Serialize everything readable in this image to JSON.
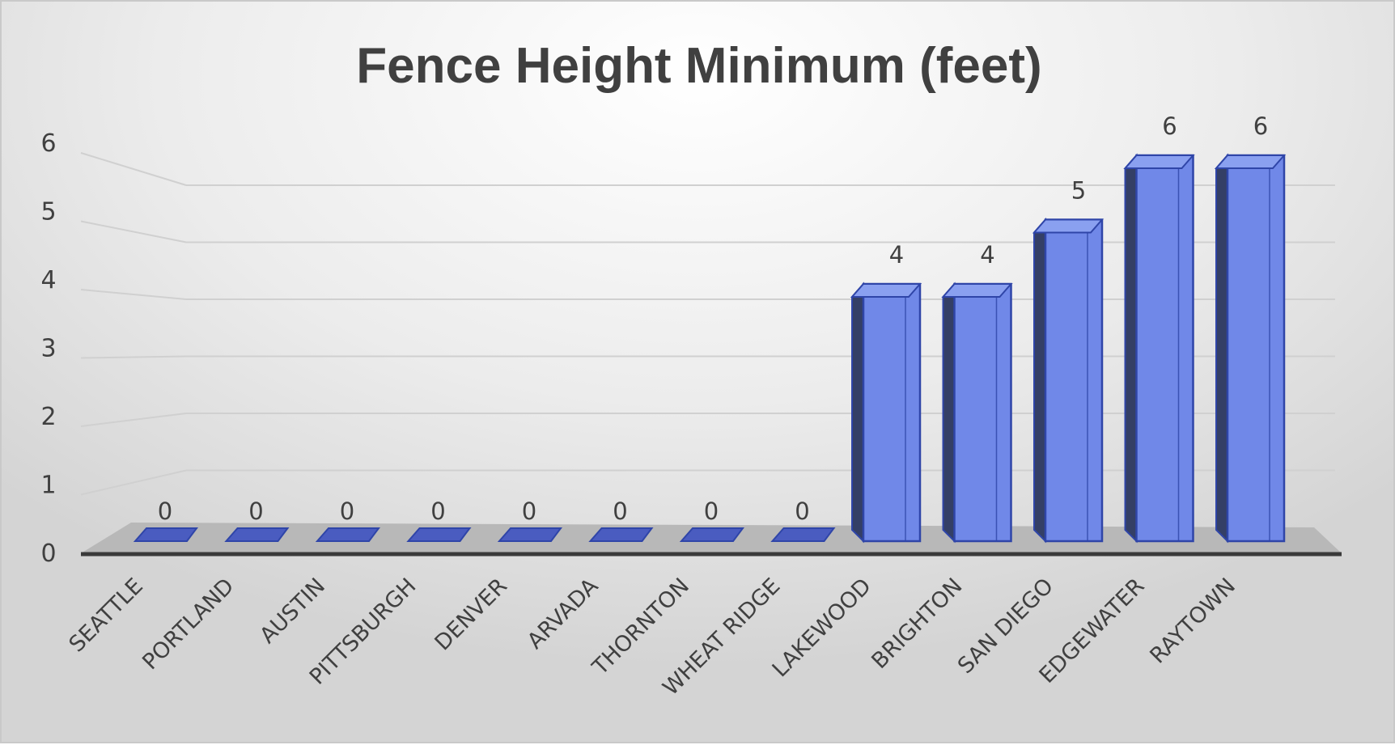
{
  "chart_data": {
    "type": "bar",
    "style": "3d-column",
    "title": "Fence Height Minimum (feet)",
    "xlabel": "",
    "ylabel": "",
    "categories": [
      "SEATTLE",
      "PORTLAND",
      "AUSTIN",
      "PITTSBURGH",
      "DENVER",
      "ARVADA",
      "THORNTON",
      "WHEAT RIDGE",
      "LAKEWOOD",
      "BRIGHTON",
      "SAN DIEGO",
      "EDGEWATER",
      "RAYTOWN"
    ],
    "values": [
      0,
      0,
      0,
      0,
      0,
      0,
      0,
      0,
      4,
      4,
      5,
      6,
      6
    ],
    "data_labels": [
      "0",
      "0",
      "0",
      "0",
      "0",
      "0",
      "0",
      "0",
      "4",
      "4",
      "5",
      "6",
      "6"
    ],
    "ylim": [
      0,
      6
    ],
    "yticks": [
      "0",
      "1",
      "2",
      "3",
      "4",
      "5",
      "6"
    ],
    "grid": true,
    "legend": "none",
    "colors": {
      "bar_front": "#7088e8",
      "bar_side": "#343f66",
      "bar_top": "#8aa0f0",
      "bar_edge": "#2f45a8",
      "floor": "#b8b8b8",
      "grid": "#d0d0d0",
      "text": "#404040"
    }
  }
}
